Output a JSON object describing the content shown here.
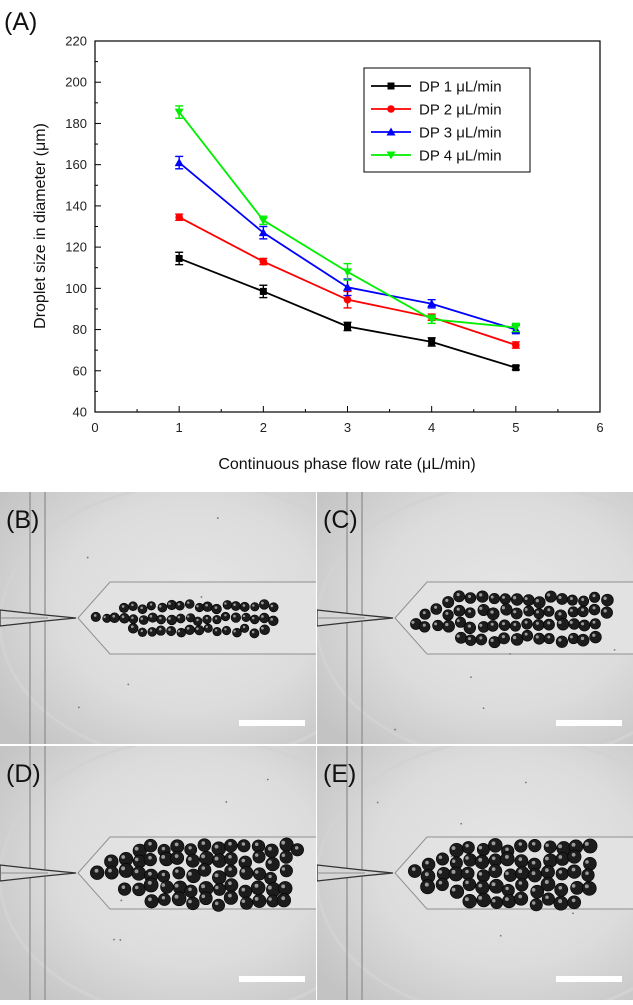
{
  "panel_a": {
    "label": "(A)"
  },
  "chart_data": {
    "type": "line",
    "x": [
      1,
      2,
      3,
      4,
      5
    ],
    "xlabel": "Continuous phase flow rate (μL/min)",
    "ylabel": "Droplet size in diameter (μm)",
    "xlim": [
      0,
      6
    ],
    "ylim": [
      40,
      220
    ],
    "xticks": [
      "0",
      "1",
      "2",
      "3",
      "4",
      "5",
      "6"
    ],
    "yticks": [
      "40",
      "60",
      "80",
      "100",
      "120",
      "140",
      "160",
      "180",
      "200",
      "220"
    ],
    "grid": false,
    "legend_position": "top-right",
    "series": [
      {
        "name": "DP 1 μL/min",
        "color": "#000000",
        "marker": "square",
        "values": [
          114.5,
          98.5,
          81.5,
          74,
          61.5
        ],
        "errors": [
          3,
          3,
          2,
          2,
          1
        ]
      },
      {
        "name": "DP 2 μL/min",
        "color": "#ff0000",
        "marker": "circle",
        "values": [
          134.5,
          113,
          94.5,
          86,
          72.5
        ],
        "errors": [
          1.5,
          1.5,
          4,
          1.5,
          1.5
        ]
      },
      {
        "name": "DP 3 μL/min",
        "color": "#0000ff",
        "marker": "triangle-up",
        "values": [
          161,
          127,
          100.5,
          92.5,
          80
        ],
        "errors": [
          3,
          3,
          4,
          2,
          2
        ]
      },
      {
        "name": "DP 4 μL/min",
        "color": "#00ee00",
        "marker": "triangle-down",
        "values": [
          185.5,
          133,
          108,
          85,
          81
        ],
        "errors": [
          3,
          2,
          4,
          2,
          2
        ]
      }
    ]
  },
  "micrographs": [
    {
      "label": "(B)",
      "droplet_count": 52,
      "droplet_size": "small",
      "scale_bar": true
    },
    {
      "label": "(C)",
      "droplet_count": 62,
      "droplet_size": "medium",
      "scale_bar": true
    },
    {
      "label": "(D)",
      "droplet_count": 66,
      "droplet_size": "large",
      "scale_bar": true
    },
    {
      "label": "(E)",
      "droplet_count": 60,
      "droplet_size": "large",
      "scale_bar": true
    }
  ]
}
